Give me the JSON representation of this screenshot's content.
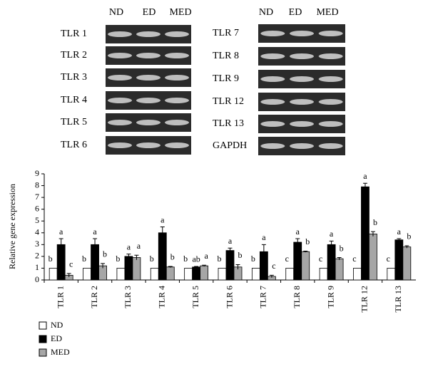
{
  "gel": {
    "left": {
      "columns": [
        "ND",
        "ED",
        "MED"
      ],
      "rows": [
        "TLR 1",
        "TLR 2",
        "TLR 3",
        "TLR 4",
        "TLR 5",
        "TLR 6"
      ]
    },
    "right": {
      "columns": [
        "ND",
        "ED",
        "MED"
      ],
      "rows": [
        "TLR 7",
        "TLR 8",
        "TLR 9",
        "TLR 12",
        "TLR 13",
        "GAPDH"
      ]
    }
  },
  "chart_data": {
    "type": "bar",
    "y_label": "Relative gene expression",
    "categories": [
      "TLR 1",
      "TLR 2",
      "TLR 3",
      "TLR 4",
      "TLR 5",
      "TLR 6",
      "TLR 7",
      "TLR 8",
      "TLR 9",
      "TLR 12",
      "TLR 13"
    ],
    "series": [
      {
        "name": "ND",
        "color": "#ffffff",
        "values": [
          1,
          1,
          1,
          1,
          1,
          1,
          1,
          1,
          1,
          1,
          1
        ],
        "labels": [
          "b",
          "b",
          "b",
          "b",
          "b",
          "b",
          "b",
          "c",
          "c",
          "c",
          "c"
        ]
      },
      {
        "name": "ED",
        "color": "#000000",
        "values": [
          3.0,
          3.0,
          2.0,
          4.0,
          1.1,
          2.5,
          2.4,
          3.2,
          3.0,
          7.9,
          3.4
        ],
        "errors": [
          0.5,
          0.5,
          0.2,
          0.5,
          0.05,
          0.2,
          0.6,
          0.3,
          0.3,
          0.3,
          0.1
        ],
        "labels": [
          "a",
          "a",
          "a",
          "a",
          "ab",
          "a",
          "a",
          "a",
          "a",
          "a",
          "a"
        ]
      },
      {
        "name": "MED",
        "color": "#a6a6a6",
        "values": [
          0.4,
          1.2,
          1.9,
          1.1,
          1.2,
          1.1,
          0.3,
          2.4,
          1.8,
          3.9,
          2.8
        ],
        "errors": [
          0.15,
          0.2,
          0.2,
          0.05,
          0.05,
          0.2,
          0.1,
          0.05,
          0.1,
          0.2,
          0.1
        ],
        "labels": [
          "c",
          "b",
          "a",
          "b",
          "a",
          "b",
          "c",
          "b",
          "b",
          "b",
          "b"
        ]
      }
    ],
    "ylim": [
      0,
      9
    ],
    "yticks": [
      0,
      1,
      2,
      3,
      4,
      5,
      6,
      7,
      8,
      9
    ]
  }
}
